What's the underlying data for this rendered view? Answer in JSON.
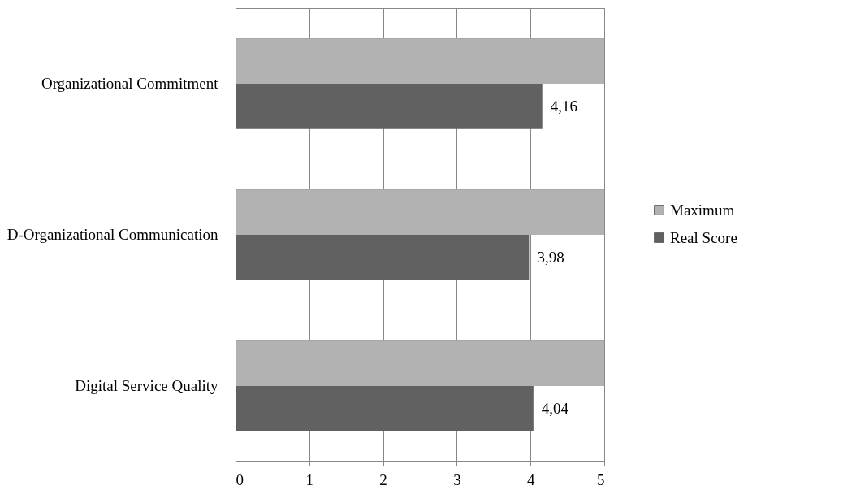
{
  "chart_data": {
    "type": "bar",
    "orientation": "horizontal",
    "categories": [
      "Organizational Commitment",
      "D-Organizational Communication",
      "Digital Service Quality"
    ],
    "series": [
      {
        "name": "Maximum",
        "color": "#b2b2b2",
        "values": [
          5,
          5,
          5
        ]
      },
      {
        "name": "Real Score",
        "color": "#616161",
        "values": [
          4.16,
          3.98,
          4.04
        ],
        "value_labels": [
          "4,16",
          "3,98",
          "4,04"
        ]
      }
    ],
    "xlim": [
      0,
      5
    ],
    "xticks": [
      0,
      1,
      2,
      3,
      4,
      5
    ],
    "grid": true,
    "legend": "right"
  }
}
